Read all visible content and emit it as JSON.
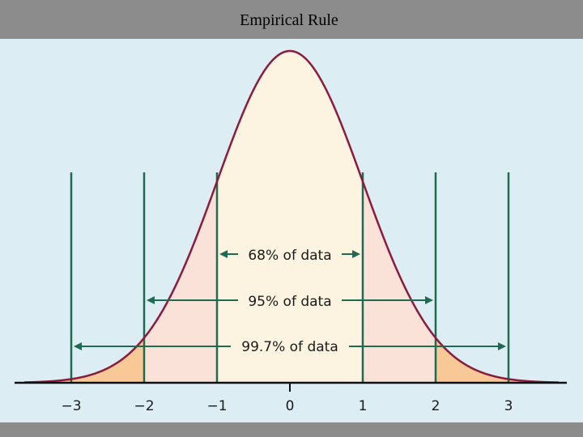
{
  "slide": {
    "title": "Empirical Rule"
  },
  "diagram": {
    "ticks": [
      "−3",
      "−2",
      "−1",
      "0",
      "1",
      "2",
      "3"
    ],
    "ranges": [
      {
        "label": "68% of data",
        "from": -1,
        "to": 1
      },
      {
        "label": "95% of data",
        "from": -2,
        "to": 2
      },
      {
        "label": "99.7% of data",
        "from": -3,
        "to": 3
      }
    ],
    "colors": {
      "curve": "#8b1a3c",
      "boundary_lines": "#1f6b52",
      "center_fill": "#fdf3e1",
      "band2_fill": "#fbe2d8",
      "band3_fill": "#f8c896",
      "background": "#dcedf4"
    }
  }
}
